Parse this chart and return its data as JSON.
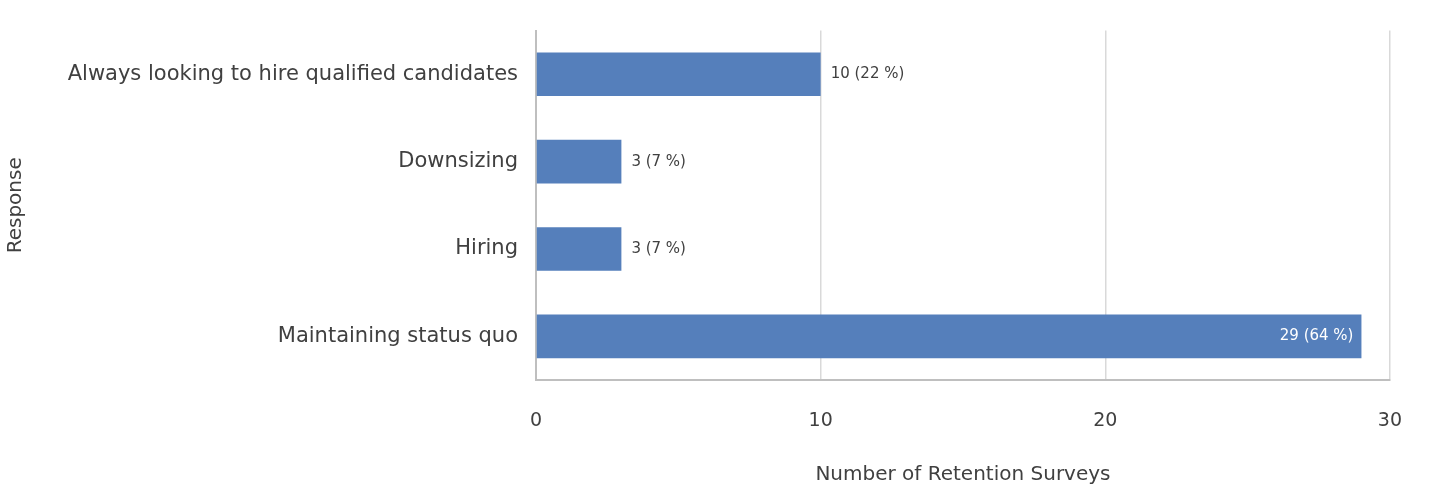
{
  "chart_data": {
    "type": "bar",
    "orientation": "horizontal",
    "categories": [
      "Always looking to hire qualified candidates",
      "Downsizing",
      "Hiring",
      "Maintaining status quo"
    ],
    "values": [
      10,
      3,
      3,
      29
    ],
    "value_labels": [
      "10 (22 %)",
      "3 (7 %)",
      "3 (7 %)",
      "29 (64 %)"
    ],
    "color": "#557fbb",
    "xlim": [
      0,
      30
    ],
    "xticks": [
      0,
      10,
      20,
      30
    ],
    "xlabel": "Number of Retention Surveys",
    "ylabel": "Response",
    "grid": "x",
    "legend": false
  }
}
